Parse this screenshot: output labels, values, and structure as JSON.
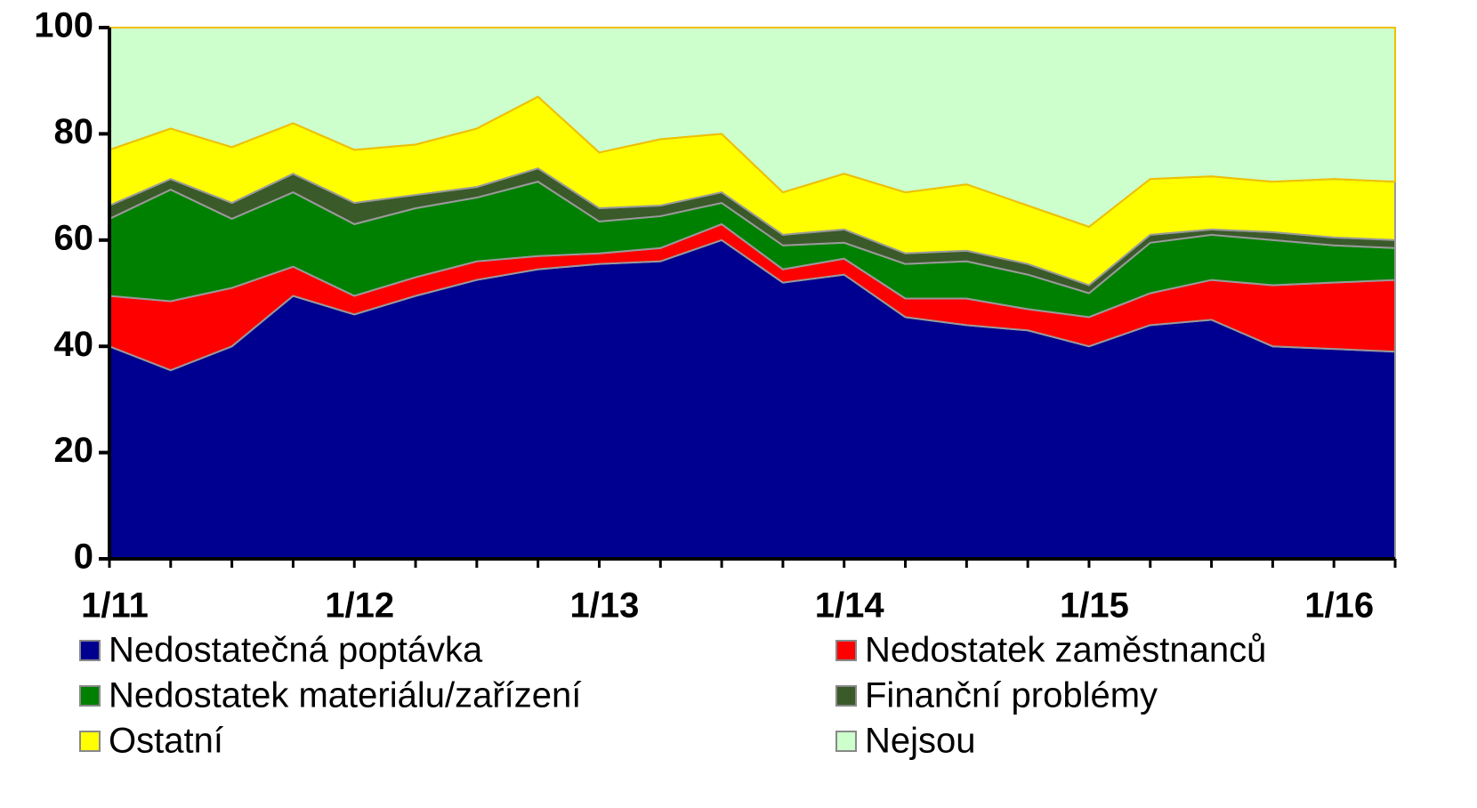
{
  "chart_data": {
    "type": "stacked_area",
    "categories": [
      "1/11",
      null,
      null,
      null,
      "1/12",
      null,
      null,
      null,
      "1/13",
      null,
      null,
      null,
      "1/14",
      null,
      null,
      null,
      "1/15",
      null,
      null,
      null,
      "1/16",
      null
    ],
    "ylim": [
      0,
      100
    ],
    "yticks": [
      0,
      20,
      40,
      60,
      80,
      100
    ],
    "series": [
      {
        "name": "Nedostatečná poptávka",
        "color": "#000090",
        "values": [
          40,
          35.5,
          40,
          49.5,
          46,
          49.5,
          52.5,
          54.5,
          55.5,
          56,
          60,
          52,
          53.5,
          45.5,
          44,
          43,
          40,
          44,
          45,
          40,
          39.5,
          39
        ]
      },
      {
        "name": "Nedostatek zaměstnanců",
        "color": "#ff0000",
        "values": [
          9.5,
          13,
          11,
          5.5,
          3.5,
          3.5,
          3.5,
          2.5,
          2,
          2.5,
          3,
          2.5,
          3,
          3.5,
          5,
          4,
          5.5,
          6,
          7.5,
          11.5,
          12.5,
          13.5
        ]
      },
      {
        "name": "Nedostatek materiálu/zařízení",
        "color": "#008000",
        "values": [
          14.5,
          21,
          13,
          14,
          13.5,
          13,
          12,
          14,
          6,
          6,
          4,
          4.5,
          3,
          6.5,
          7,
          6.5,
          4.5,
          9.5,
          8.5,
          8.5,
          7,
          6
        ]
      },
      {
        "name": "Finanční problémy",
        "color": "#3a5a2a",
        "values": [
          2.5,
          2,
          3,
          3.5,
          4,
          2.5,
          2,
          2.5,
          2.5,
          2,
          2,
          2,
          2.5,
          2,
          2,
          2,
          1.5,
          1.5,
          1,
          1.5,
          1.5,
          1.5
        ]
      },
      {
        "name": "Ostatní",
        "color": "#ffff00",
        "values": [
          10.5,
          9.5,
          10.5,
          9.5,
          10,
          9.5,
          11,
          13.5,
          10.5,
          12.5,
          11,
          8,
          10.5,
          11.5,
          12.5,
          11,
          11,
          10.5,
          10,
          9.5,
          11,
          11
        ]
      },
      {
        "name": "Nejsou",
        "color": "#ccffcc",
        "values": [
          23,
          19,
          22.5,
          18,
          23,
          22,
          19,
          13,
          23.5,
          21,
          20,
          31,
          27.5,
          31,
          29.5,
          33.5,
          37.5,
          28.5,
          28,
          29,
          28.5,
          29
        ]
      }
    ]
  }
}
